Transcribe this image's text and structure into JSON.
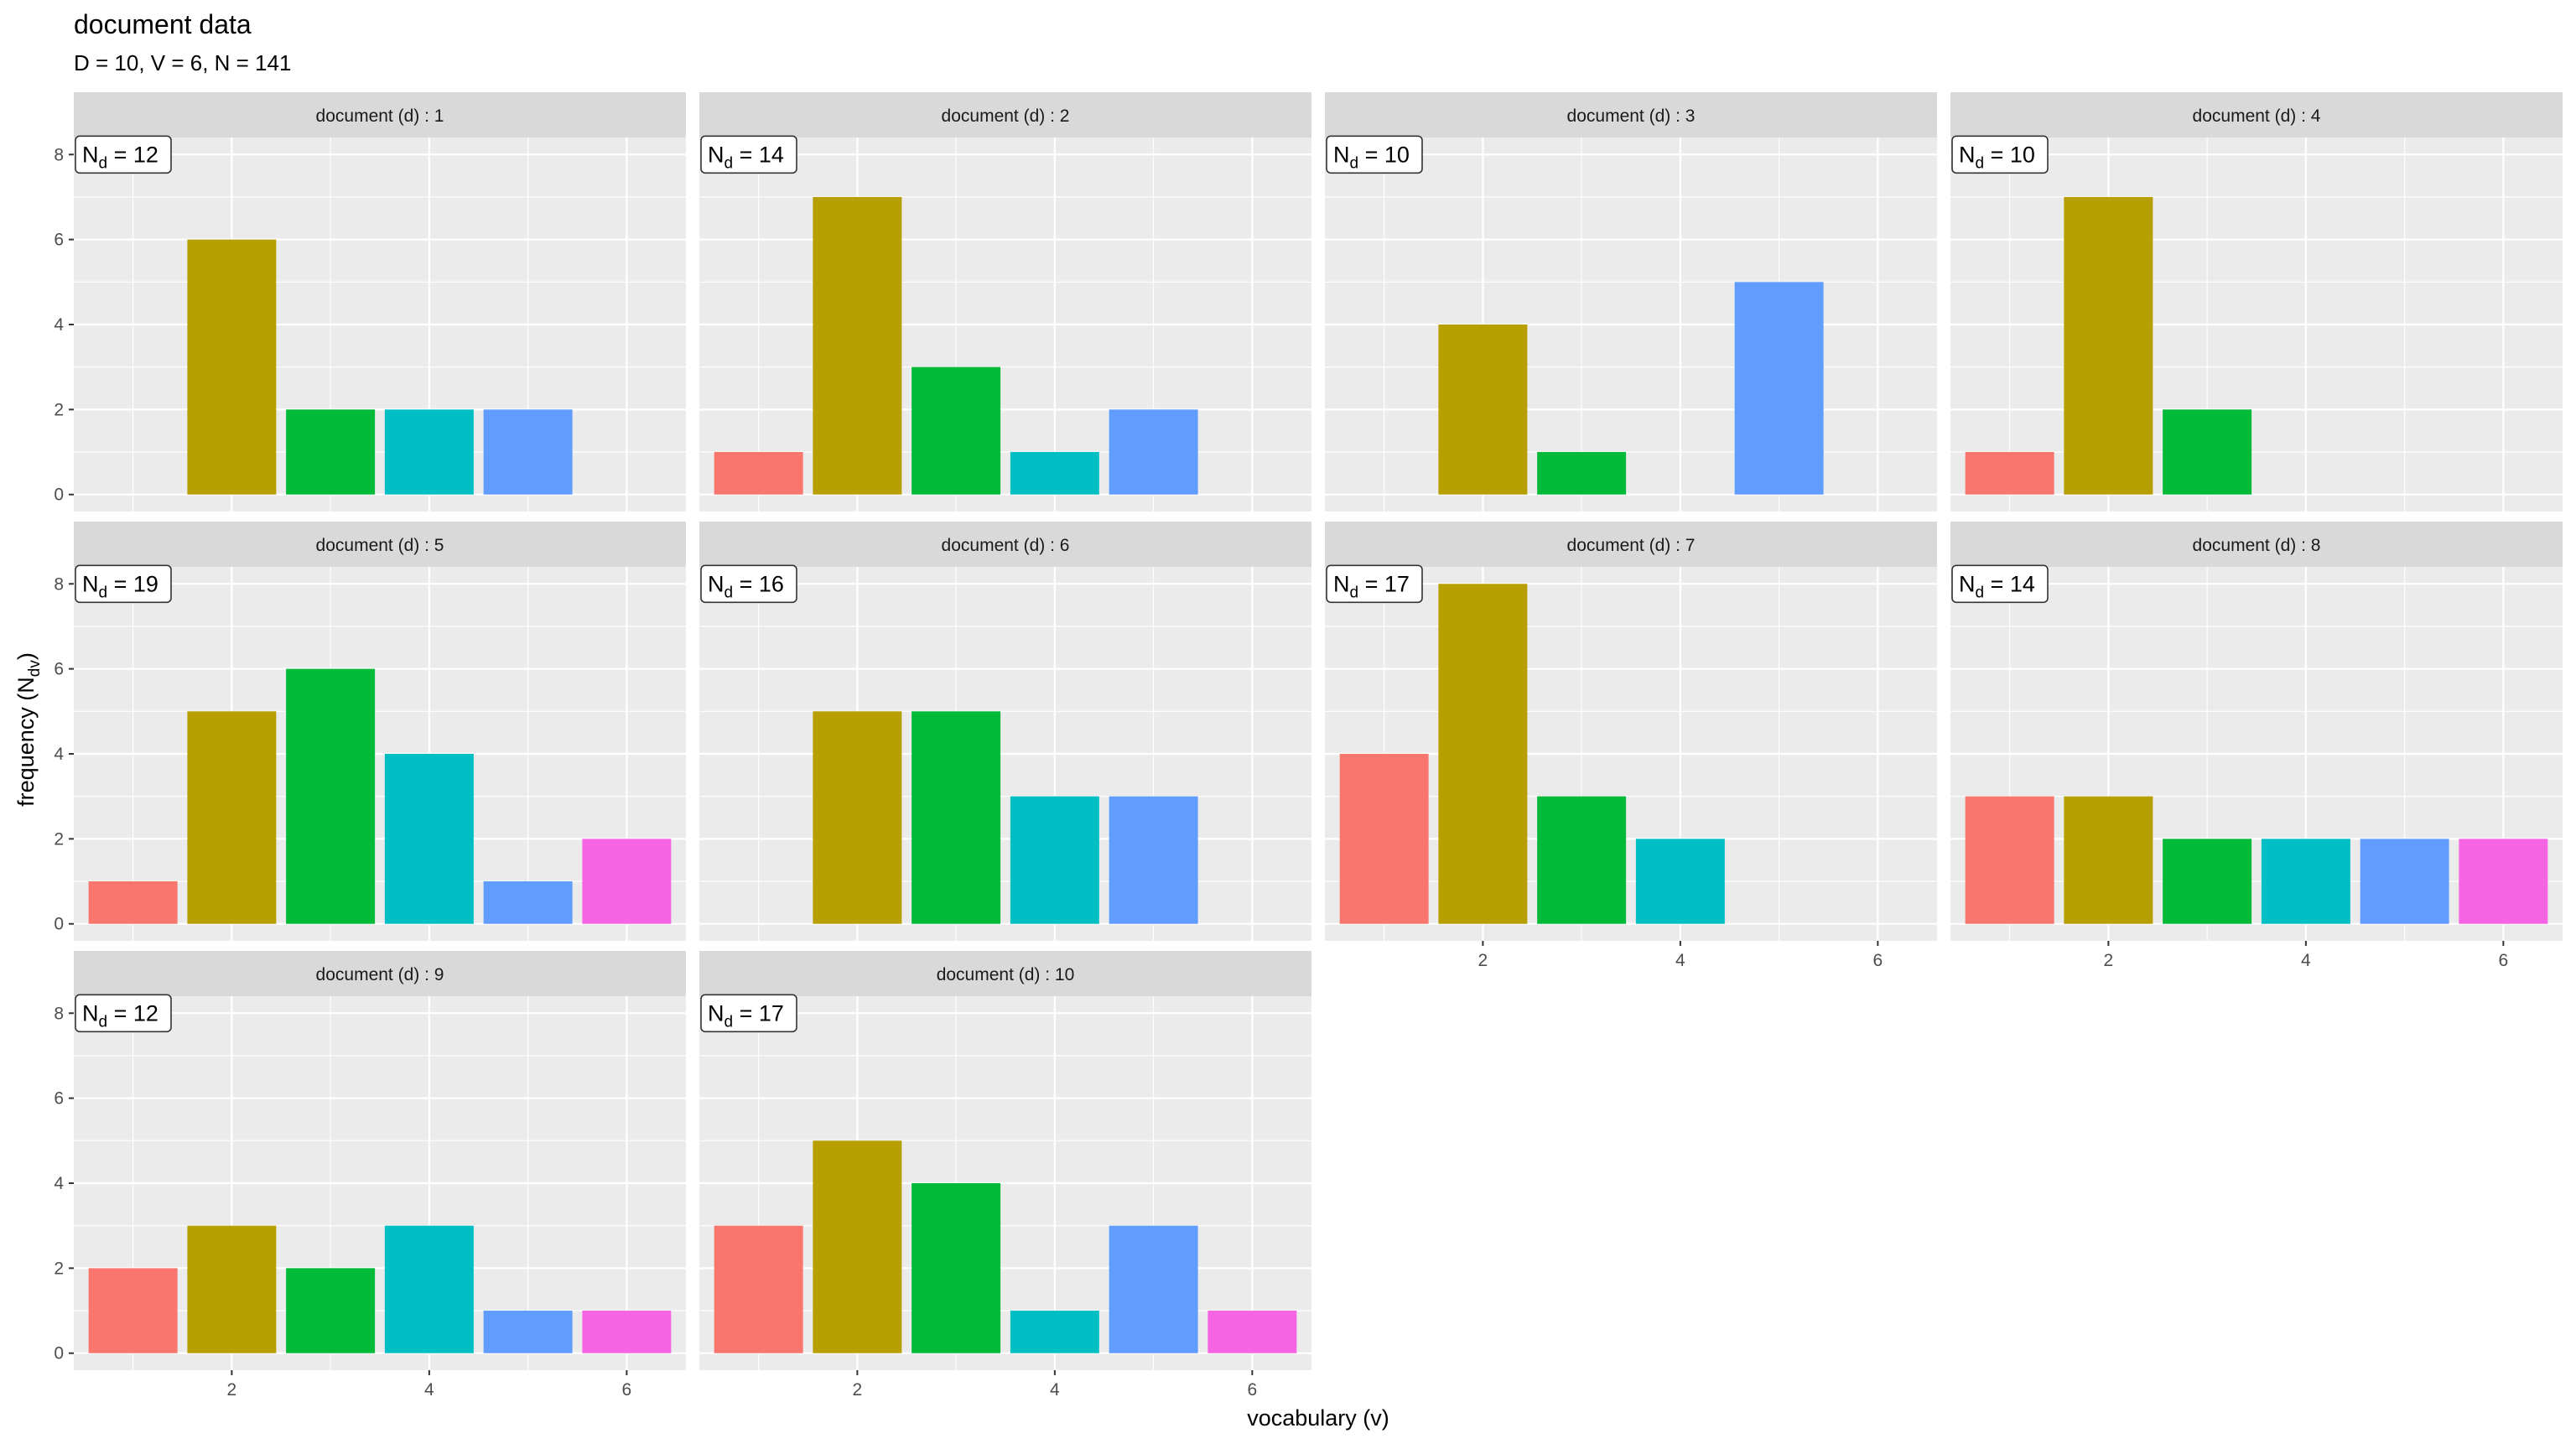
{
  "title": "document data",
  "subtitle": "D = 10, V = 6, N = 141",
  "colors": {
    "palette": [
      "#F8766D",
      "#B79F00",
      "#00BA38",
      "#00BFC4",
      "#619CFF",
      "#F564E3"
    ],
    "panel_background": "#EBEBEB",
    "strip_background": "#D9D9D9"
  },
  "chart_data": {
    "type": "bar",
    "layout": "facet_wrap",
    "facet_columns": 4,
    "xlabel": "vocabulary (v)",
    "ylabel": "frequency (N",
    "ylabel_subscript": "dv",
    "ylabel_suffix": ")",
    "xlim": [
      0.4,
      6.6
    ],
    "ylim": [
      -0.4,
      8.4
    ],
    "x_ticks": [
      2,
      4,
      6
    ],
    "y_ticks": [
      0,
      2,
      4,
      6,
      8
    ],
    "grid": true,
    "legend": "none",
    "facets": [
      {
        "label": "document (d) : 1",
        "nd_label": "= 12",
        "x": [
          2,
          3,
          4,
          5
        ],
        "values": [
          6,
          2,
          2,
          2
        ]
      },
      {
        "label": "document (d) : 2",
        "nd_label": "= 14",
        "x": [
          1,
          2,
          3,
          4,
          5
        ],
        "values": [
          1,
          7,
          3,
          1,
          2
        ]
      },
      {
        "label": "document (d) : 3",
        "nd_label": "= 10",
        "x": [
          2,
          3,
          5
        ],
        "values": [
          4,
          1,
          5
        ]
      },
      {
        "label": "document (d) : 4",
        "nd_label": "= 10",
        "x": [
          1,
          2,
          3
        ],
        "values": [
          1,
          7,
          2
        ]
      },
      {
        "label": "document (d) : 5",
        "nd_label": "= 19",
        "x": [
          1,
          2,
          3,
          4,
          5,
          6
        ],
        "values": [
          1,
          5,
          6,
          4,
          1,
          2
        ]
      },
      {
        "label": "document (d) : 6",
        "nd_label": "= 16",
        "x": [
          2,
          3,
          4,
          5
        ],
        "values": [
          5,
          5,
          3,
          3
        ]
      },
      {
        "label": "document (d) : 7",
        "nd_label": "= 17",
        "x": [
          1,
          2,
          3,
          4
        ],
        "values": [
          4,
          8,
          3,
          2
        ]
      },
      {
        "label": "document (d) : 8",
        "nd_label": "= 14",
        "x": [
          1,
          2,
          3,
          4,
          5,
          6
        ],
        "values": [
          3,
          3,
          2,
          2,
          2,
          2
        ]
      },
      {
        "label": "document (d) : 9",
        "nd_label": "= 12",
        "x": [
          1,
          2,
          3,
          4,
          5,
          6
        ],
        "values": [
          2,
          3,
          2,
          3,
          1,
          1
        ]
      },
      {
        "label": "document (d) : 10",
        "nd_label": "= 17",
        "x": [
          1,
          2,
          3,
          4,
          5,
          6
        ],
        "values": [
          3,
          5,
          4,
          1,
          3,
          1
        ]
      }
    ]
  }
}
